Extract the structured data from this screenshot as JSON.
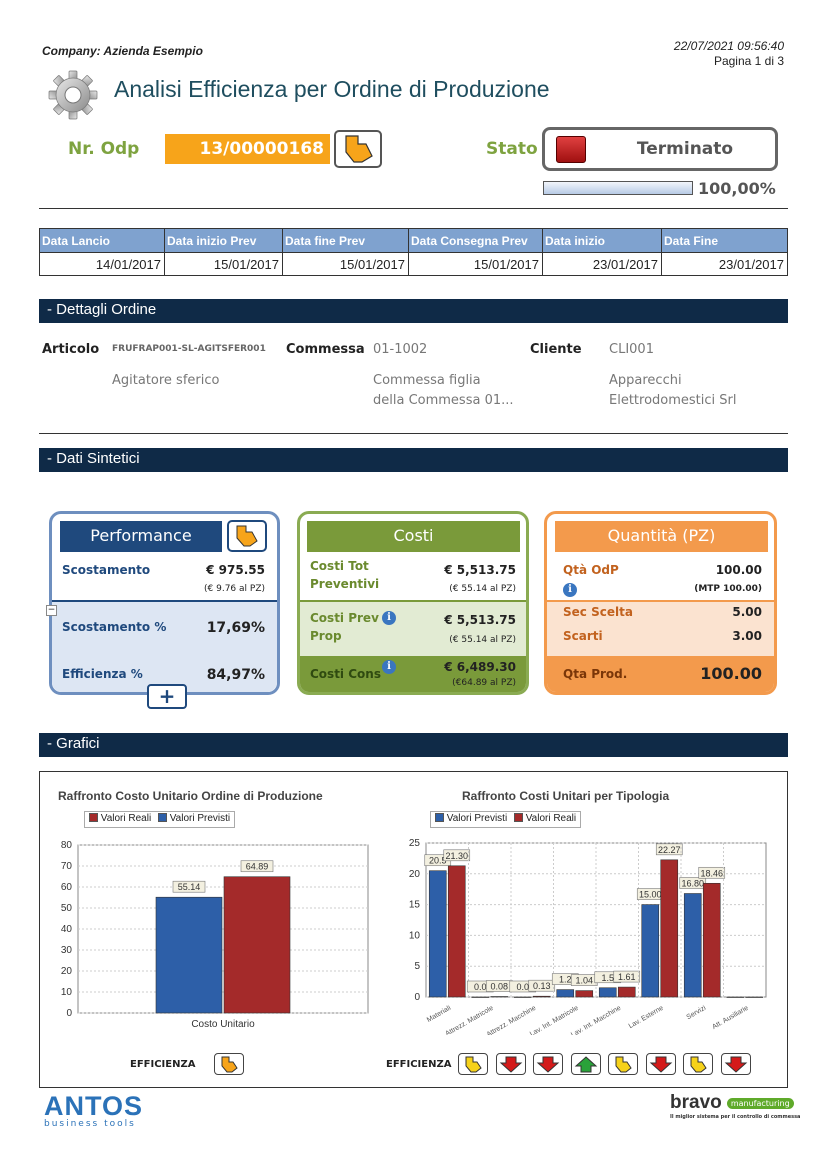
{
  "header": {
    "company": "Company: Azienda Esempio",
    "datetime": "22/07/2021 09:56:40",
    "page": "Pagina 1 di 3",
    "title": "Analisi Efficienza per Ordine di Produzione"
  },
  "odp": {
    "label": "Nr. Odp",
    "value": "13/00000168"
  },
  "stato": {
    "label": "Stato",
    "value": "Terminato",
    "progress_text": "100,00%",
    "progress": 1.0
  },
  "dates": {
    "headers": [
      "Data Lancio",
      "Data inizio Prev",
      "Data fine Prev",
      "Data Consegna Prev",
      "Data inizio",
      "Data Fine"
    ],
    "values": [
      "14/01/2017",
      "15/01/2017",
      "15/01/2017",
      "15/01/2017",
      "23/01/2017",
      "23/01/2017"
    ]
  },
  "sections": {
    "dettagli": "- Dettagli Ordine",
    "sintetici": "- Dati Sintetici",
    "grafici": "- Grafici"
  },
  "dettagli": {
    "articolo_label": "Articolo",
    "articolo_code": "FRUFRAP001-SL-AGITSFER001",
    "articolo_desc": "Agitatore sferico",
    "commessa_label": "Commessa",
    "commessa_code": "01-1002",
    "commessa_desc1": "Commessa figlia",
    "commessa_desc2": "della Commessa 01...",
    "cliente_label": "Cliente",
    "cliente_code": "CLI001",
    "cliente_desc1": "Apparecchi",
    "cliente_desc2": "Elettrodomestici   Srl"
  },
  "performance": {
    "title": "Performance",
    "scost_label": "Scostamento",
    "scost_value": "€ 975.55",
    "scost_sub": "(€ 9.76 al PZ)",
    "scost_pct_label": "Scostamento %",
    "scost_pct_value": "17,69%",
    "eff_label": "Efficienza %",
    "eff_value": "84,97%",
    "collapse": "−",
    "plus": "+"
  },
  "costi": {
    "title": "Costi",
    "tot_prev_label1": "Costi Tot",
    "tot_prev_label2": "Preventivi",
    "tot_prev_value": "€ 5,513.75",
    "tot_prev_sub": "(€ 55.14 al PZ)",
    "prev_prop_label1": "Costi Prev",
    "prev_prop_label2": "Prop",
    "prev_prop_value": "€ 5,513.75",
    "prev_prop_sub": "(€ 55.14 al PZ)",
    "cons_label": "Costi Cons",
    "cons_value": "€ 6,489.30",
    "cons_sub": "(€64.89 al PZ)",
    "info": "i"
  },
  "quantita": {
    "title": "Quantità (PZ)",
    "odp_label": "Qtà OdP",
    "odp_value": "100.00",
    "mtp": "(MTP 100.00)",
    "sec_label": "Sec Scelta",
    "sec_value": "5.00",
    "scarti_label": "Scarti",
    "scarti_value": "3.00",
    "prod_label": "Qta Prod.",
    "prod_value": "100.00",
    "info": "i"
  },
  "colors": {
    "real": "#a42a2a",
    "prev": "#2d5fa8",
    "navy": "#0f2a47",
    "green": "#7a9a3a",
    "orange": "#f39a4c"
  },
  "chart_data": [
    {
      "type": "bar",
      "title": "Raffronto Costo Unitario Ordine di Produzione",
      "categories": [
        "Costo Unitario"
      ],
      "series": [
        {
          "name": "Valori Previsti",
          "values": [
            55.14
          ]
        },
        {
          "name": "Valori Reali",
          "values": [
            64.89
          ]
        }
      ],
      "legend": [
        "Valori Reali",
        "Valori Previsti"
      ],
      "data_labels": [
        "55.14",
        "64.89"
      ],
      "ylim": [
        0,
        80
      ],
      "yticks": [
        "0",
        "10",
        "20",
        "30",
        "40",
        "50",
        "60",
        "70",
        "80"
      ],
      "grid": true,
      "legend_position": "top-left",
      "efficienza_label": "EFFICIENZA",
      "efficienza": [
        "down-right-orange"
      ]
    },
    {
      "type": "bar",
      "title": "Raffronto Costi Unitari per Tipologia",
      "categories": [
        "Materiali",
        "Attrezz. Matricole",
        "Attrezz. Macchine",
        "Lav. Int. Matricole",
        "Lav. Int. Macchine",
        "Lav. Esterne",
        "Servizi",
        "Att. Ausiliarie"
      ],
      "series": [
        {
          "name": "Valori Previsti",
          "values": [
            20.5,
            0.0,
            0.0,
            1.2,
            1.5,
            15.0,
            16.8,
            0.0
          ]
        },
        {
          "name": "Valori Reali",
          "values": [
            21.3,
            0.08,
            0.13,
            1.04,
            1.61,
            22.27,
            18.46,
            0.0
          ]
        }
      ],
      "data_labels": [
        [
          "20.5",
          "21.30"
        ],
        [
          "0.0",
          "0.08"
        ],
        [
          "0.0",
          "0.13"
        ],
        [
          "1.2",
          "1.04"
        ],
        [
          "1.5",
          "1.61"
        ],
        [
          "15.00",
          "22.27"
        ],
        [
          "16.80",
          "18.46"
        ],
        [
          "",
          ""
        ]
      ],
      "legend": [
        "Valori Previsti",
        "Valori Reali"
      ],
      "ylim": [
        0,
        25
      ],
      "yticks": [
        "0",
        "5",
        "10",
        "15",
        "20",
        "25"
      ],
      "grid": true,
      "legend_position": "top-left",
      "efficienza_label": "EFFICIENZA",
      "efficienza": [
        "down-left-yellow",
        "down-red",
        "down-red",
        "up-green",
        "down-left-yellow",
        "down-red",
        "down-left-yellow",
        "down-red"
      ]
    }
  ],
  "footer": {
    "antos": "ANTOS",
    "antos_sub": "business tools",
    "bravo": "bravo",
    "bravo_tag": "manufacturing",
    "bravo_sub": "Il miglior sistema per il controllo di commessa"
  }
}
